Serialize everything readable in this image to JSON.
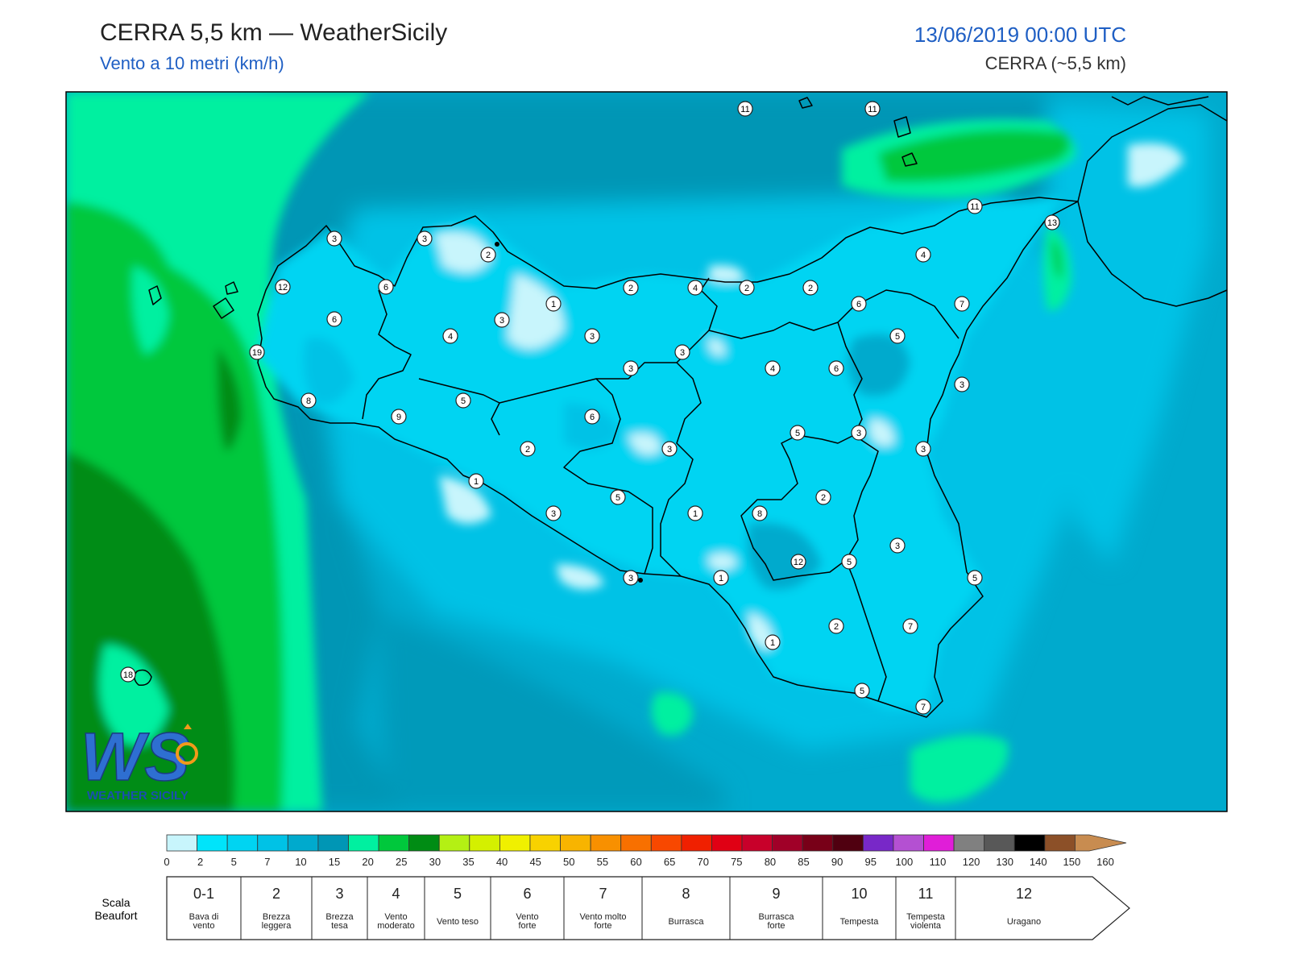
{
  "header": {
    "title": "CERRA 5,5 km — WeatherSicily",
    "subtitle": "Vento a 10 metri (km/h)",
    "datetime": "13/06/2019 00:00 UTC",
    "model": "CERRA (~5,5 km)"
  },
  "logo": {
    "letters": "WS",
    "text": "WEATHER SICILY"
  },
  "station_values": [
    "11",
    "11",
    "11",
    "13",
    "3",
    "3",
    "2",
    "12",
    "6",
    "6",
    "19",
    "8",
    "5",
    "9",
    "4",
    "3",
    "1",
    "3",
    "2",
    "4",
    "2",
    "2",
    "3",
    "3",
    "4",
    "6",
    "7",
    "5",
    "6",
    "4",
    "3",
    "5",
    "6",
    "2",
    "3",
    "5",
    "1",
    "8",
    "2",
    "3",
    "1",
    "3",
    "1",
    "12",
    "5",
    "3",
    "5",
    "7",
    "2",
    "1",
    "5",
    "7",
    "18",
    "3",
    "3"
  ],
  "colorbar": {
    "colors": [
      "#c8f5fc",
      "#00e4fa",
      "#00d4f2",
      "#00c2e6",
      "#00aacd",
      "#0096b5",
      "#00f0a0",
      "#00c83c",
      "#008c14",
      "#b4f014",
      "#d4f000",
      "#f0f000",
      "#f8d200",
      "#f8b400",
      "#f89000",
      "#f87000",
      "#f84800",
      "#f02000",
      "#e00014",
      "#c8002a",
      "#a00028",
      "#780018",
      "#500010",
      "#7828c8",
      "#b450d2",
      "#e01ed8",
      "#808080",
      "#585858",
      "#000000",
      "#8c5028",
      "#c88c50"
    ],
    "ticks": [
      "0",
      "2",
      "5",
      "7",
      "10",
      "15",
      "20",
      "25",
      "30",
      "35",
      "40",
      "45",
      "50",
      "55",
      "60",
      "65",
      "70",
      "75",
      "80",
      "85",
      "90",
      "95",
      "100",
      "110",
      "120",
      "130",
      "140",
      "150",
      "160"
    ]
  },
  "beaufort": {
    "label_line1": "Scala",
    "label_line2": "Beaufort",
    "cells": [
      {
        "num": "0-1",
        "desc": [
          "Bava di",
          "vento"
        ]
      },
      {
        "num": "2",
        "desc": [
          "Brezza",
          "leggera"
        ]
      },
      {
        "num": "3",
        "desc": [
          "Brezza",
          "tesa"
        ]
      },
      {
        "num": "4",
        "desc": [
          "Vento",
          "moderato"
        ]
      },
      {
        "num": "5",
        "desc": [
          "Vento teso"
        ]
      },
      {
        "num": "6",
        "desc": [
          "Vento",
          "forte"
        ]
      },
      {
        "num": "7",
        "desc": [
          "Vento molto",
          "forte"
        ]
      },
      {
        "num": "8",
        "desc": [
          "Burrasca"
        ]
      },
      {
        "num": "9",
        "desc": [
          "Burrasca",
          "forte"
        ]
      },
      {
        "num": "10",
        "desc": [
          "Tempesta"
        ]
      },
      {
        "num": "11",
        "desc": [
          "Tempesta",
          "violenta"
        ]
      },
      {
        "num": "12",
        "desc": [
          "Uragano"
        ]
      }
    ]
  }
}
